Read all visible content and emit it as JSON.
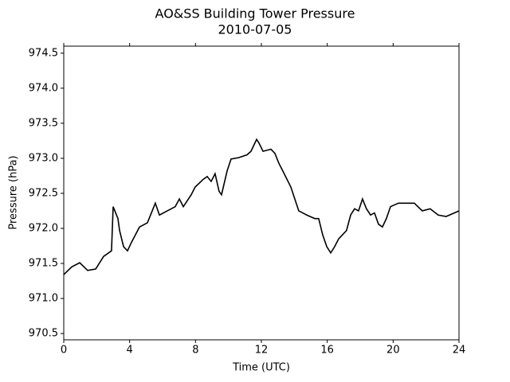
{
  "chart_data": {
    "type": "line",
    "title": "AO&SS Building Tower Pressure",
    "subtitle": "2010-07-05",
    "x_label": "Time (UTC)",
    "y_label": "Pressure (hPa)",
    "xlim": [
      0,
      24
    ],
    "xticks": [
      0,
      4,
      8,
      12,
      16,
      20,
      24
    ],
    "ylim": [
      970.41,
      974.6
    ],
    "yticks": [
      970.5,
      {
        "value": 971,
        "label": "971.0"
      },
      971.5,
      {
        "value": 972,
        "label": "972.0"
      },
      972.5,
      {
        "value": 973,
        "label": "973.0"
      },
      973.5,
      {
        "value": 974,
        "label": "974.0"
      },
      974.5
    ],
    "grid": false,
    "x": [
      0,
      0.48,
      0.97,
      1.45,
      1.94,
      2.42,
      2.9,
      3.0,
      3.29,
      3.39,
      3.63,
      3.87,
      4.11,
      4.6,
      5.08,
      5.56,
      5.81,
      6.29,
      6.77,
      7.02,
      7.26,
      7.74,
      7.98,
      8.47,
      8.71,
      8.95,
      9.19,
      9.43,
      9.58,
      9.92,
      10.16,
      10.64,
      11.13,
      11.37,
      11.71,
      11.85,
      12.1,
      12.58,
      12.82,
      13.06,
      13.3,
      13.79,
      14.03,
      14.27,
      14.76,
      15.24,
      15.48,
      15.72,
      15.97,
      16.21,
      16.45,
      16.69,
      16.93,
      17.17,
      17.42,
      17.66,
      17.9,
      18.14,
      18.38,
      18.63,
      18.87,
      19.11,
      19.35,
      19.59,
      19.84,
      20.32,
      20.8,
      21.29,
      21.77,
      22.25,
      22.74,
      23.22,
      23.71,
      24.0
    ],
    "series": [
      {
        "color": "#000000",
        "values": [
          971.34,
          971.45,
          971.51,
          971.4,
          971.42,
          971.6,
          971.68,
          972.31,
          972.14,
          971.97,
          971.74,
          971.68,
          971.8,
          972.02,
          972.08,
          972.36,
          972.19,
          972.25,
          972.31,
          972.42,
          972.31,
          972.48,
          972.59,
          972.7,
          972.74,
          972.67,
          972.78,
          972.53,
          972.48,
          972.82,
          972.99,
          973.01,
          973.05,
          973.1,
          973.27,
          973.22,
          973.1,
          973.13,
          973.07,
          972.93,
          972.82,
          972.59,
          972.42,
          972.25,
          972.19,
          972.14,
          972.14,
          971.91,
          971.74,
          971.65,
          971.74,
          971.85,
          971.91,
          971.97,
          972.19,
          972.28,
          972.25,
          972.42,
          972.28,
          972.19,
          972.22,
          972.06,
          972.02,
          972.14,
          972.31,
          972.36,
          972.36,
          972.36,
          972.25,
          972.28,
          972.19,
          972.17,
          972.22,
          972.25
        ]
      }
    ]
  }
}
